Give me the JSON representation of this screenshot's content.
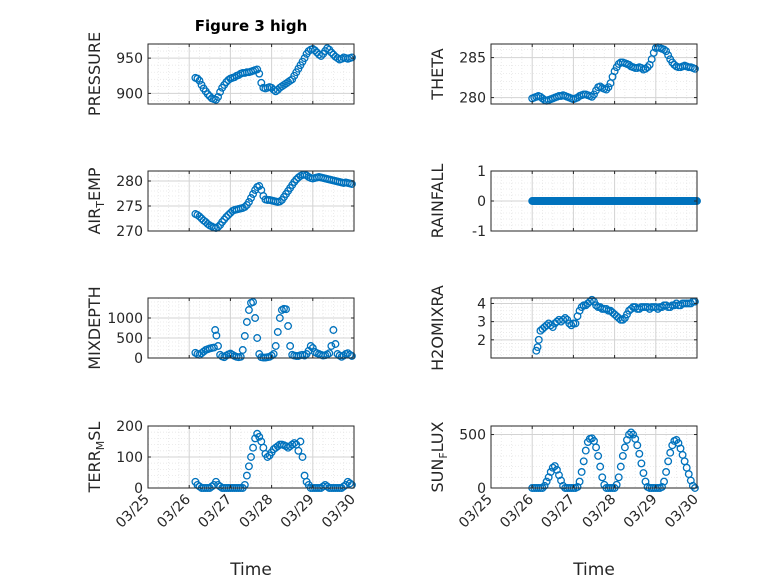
{
  "figure_title": "Figure 3 high",
  "colors": {
    "marker": "#0072BD",
    "axis": "#262626",
    "grid": "#d3d3d3",
    "minor_grid": "#e6e6e6"
  },
  "x_tick_labels": [
    "03/25",
    "03/26",
    "03/27",
    "03/28",
    "03/29",
    "03/30"
  ],
  "x_axis_label": "Time",
  "chart_data": [
    {
      "id": "pressure",
      "type": "scatter",
      "marker": "circle",
      "ylabel": {
        "main": "PRESSURE"
      },
      "ylim": [
        885,
        970
      ],
      "yticks": [
        900,
        950
      ],
      "ytick_labels": [
        "900",
        "950"
      ],
      "xlim": [
        0,
        5
      ],
      "grid": "major+minor",
      "x": [
        1.15,
        1.2,
        1.25,
        1.3,
        1.35,
        1.4,
        1.45,
        1.5,
        1.55,
        1.6,
        1.65,
        1.7,
        1.75,
        1.8,
        1.85,
        1.9,
        1.95,
        2.0,
        2.05,
        2.1,
        2.15,
        2.2,
        2.25,
        2.3,
        2.35,
        2.4,
        2.45,
        2.5,
        2.55,
        2.6,
        2.65,
        2.7,
        2.75,
        2.8,
        2.85,
        2.9,
        2.95,
        3.0,
        3.05,
        3.1,
        3.15,
        3.2,
        3.25,
        3.3,
        3.35,
        3.4,
        3.45,
        3.5,
        3.55,
        3.6,
        3.65,
        3.7,
        3.75,
        3.8,
        3.85,
        3.9,
        3.95,
        4.0,
        4.05,
        4.1,
        4.15,
        4.2,
        4.25,
        4.3,
        4.35,
        4.4,
        4.45,
        4.5,
        4.55,
        4.6,
        4.65,
        4.7,
        4.75,
        4.8,
        4.85,
        4.9,
        4.95
      ],
      "y": [
        922,
        921,
        918,
        912,
        907,
        903,
        899,
        896,
        893,
        892,
        891,
        895,
        902,
        908,
        912,
        916,
        919,
        921,
        922,
        923,
        925,
        926,
        928,
        929,
        929,
        930,
        930,
        931,
        932,
        933,
        934,
        928,
        915,
        908,
        907,
        908,
        909,
        908,
        905,
        903,
        905,
        908,
        910,
        912,
        914,
        916,
        918,
        920,
        925,
        930,
        935,
        940,
        945,
        950,
        956,
        960,
        962,
        963,
        961,
        958,
        955,
        953,
        956,
        960,
        964,
        962,
        958,
        955,
        952,
        950,
        948,
        949,
        951,
        950,
        949,
        950,
        951
      ]
    },
    {
      "id": "theta",
      "type": "scatter",
      "marker": "circle",
      "ylabel": {
        "main": "THETA"
      },
      "ylim": [
        279.2,
        286.7
      ],
      "yticks": [
        280,
        285
      ],
      "ytick_labels": [
        "280",
        "285"
      ],
      "xlim": [
        0,
        5
      ],
      "grid": "major+minor",
      "x": [
        1.0,
        1.05,
        1.1,
        1.15,
        1.2,
        1.25,
        1.3,
        1.35,
        1.4,
        1.45,
        1.5,
        1.55,
        1.6,
        1.65,
        1.7,
        1.75,
        1.8,
        1.85,
        1.9,
        1.95,
        2.0,
        2.05,
        2.1,
        2.15,
        2.2,
        2.25,
        2.3,
        2.35,
        2.4,
        2.45,
        2.5,
        2.55,
        2.6,
        2.65,
        2.7,
        2.75,
        2.8,
        2.85,
        2.9,
        2.95,
        3.0,
        3.05,
        3.1,
        3.15,
        3.2,
        3.25,
        3.3,
        3.35,
        3.4,
        3.45,
        3.5,
        3.55,
        3.6,
        3.65,
        3.7,
        3.75,
        3.8,
        3.85,
        3.9,
        3.95,
        4.0,
        4.05,
        4.1,
        4.15,
        4.2,
        4.25,
        4.3,
        4.35,
        4.4,
        4.45,
        4.5,
        4.55,
        4.6,
        4.65,
        4.7,
        4.75,
        4.8,
        4.85,
        4.9,
        4.95
      ],
      "y": [
        279.9,
        280.0,
        280.1,
        280.2,
        280.1,
        279.9,
        279.7,
        279.6,
        279.7,
        279.8,
        279.9,
        280.0,
        280.1,
        280.2,
        280.2,
        280.3,
        280.2,
        280.1,
        280.0,
        279.9,
        279.8,
        279.9,
        280.0,
        280.2,
        280.3,
        280.4,
        280.4,
        280.3,
        280.2,
        280.1,
        280.4,
        280.9,
        281.3,
        281.4,
        281.2,
        281.1,
        281.0,
        281.3,
        281.8,
        282.6,
        283.3,
        283.8,
        284.2,
        284.4,
        284.4,
        284.3,
        284.2,
        284.1,
        283.9,
        283.8,
        283.7,
        283.7,
        283.8,
        283.7,
        283.5,
        283.6,
        283.8,
        284.1,
        284.8,
        285.6,
        286.2,
        286.3,
        286.2,
        286.1,
        286.0,
        285.8,
        285.3,
        284.8,
        284.4,
        284.1,
        283.9,
        283.8,
        283.8,
        283.9,
        284.0,
        283.9,
        283.8,
        283.8,
        283.7,
        283.6
      ]
    },
    {
      "id": "air_temp",
      "type": "scatter",
      "marker": "circle",
      "ylabel": {
        "main": "AIR",
        "sub": "T",
        "rest": "EMP"
      },
      "ylim": [
        270,
        282
      ],
      "yticks": [
        270,
        275,
        280
      ],
      "ytick_labels": [
        "270",
        "275",
        "280"
      ],
      "xlim": [
        0,
        5
      ],
      "grid": "major+minor",
      "x": [
        1.15,
        1.2,
        1.25,
        1.3,
        1.35,
        1.4,
        1.45,
        1.5,
        1.55,
        1.6,
        1.65,
        1.7,
        1.75,
        1.8,
        1.85,
        1.9,
        1.95,
        2.0,
        2.05,
        2.1,
        2.15,
        2.2,
        2.25,
        2.3,
        2.35,
        2.4,
        2.45,
        2.5,
        2.55,
        2.6,
        2.65,
        2.7,
        2.75,
        2.8,
        2.85,
        2.9,
        2.95,
        3.0,
        3.05,
        3.1,
        3.15,
        3.2,
        3.25,
        3.3,
        3.35,
        3.4,
        3.45,
        3.5,
        3.55,
        3.6,
        3.65,
        3.7,
        3.75,
        3.8,
        3.85,
        3.9,
        3.95,
        4.0,
        4.05,
        4.1,
        4.15,
        4.2,
        4.25,
        4.3,
        4.35,
        4.4,
        4.45,
        4.5,
        4.55,
        4.6,
        4.65,
        4.7,
        4.75,
        4.8,
        4.85,
        4.9,
        4.95
      ],
      "y": [
        273.4,
        273.2,
        272.9,
        272.5,
        272.1,
        271.8,
        271.4,
        271.1,
        270.9,
        270.7,
        270.6,
        270.8,
        271.2,
        271.8,
        272.3,
        272.8,
        273.2,
        273.6,
        274.0,
        274.2,
        274.3,
        274.4,
        274.5,
        274.6,
        274.8,
        275.2,
        275.8,
        276.6,
        277.4,
        278.2,
        278.8,
        279.0,
        278.2,
        277.0,
        276.3,
        276.2,
        276.2,
        276.1,
        276.0,
        275.9,
        275.8,
        275.9,
        276.2,
        276.8,
        277.4,
        278.0,
        278.6,
        279.2,
        279.8,
        280.3,
        280.7,
        281.0,
        281.2,
        281.3,
        281.1,
        280.8,
        280.6,
        280.5,
        280.6,
        280.7,
        280.8,
        280.7,
        280.6,
        280.5,
        280.4,
        280.3,
        280.2,
        280.1,
        280.0,
        279.9,
        279.8,
        279.7,
        279.6,
        279.7,
        279.6,
        279.5,
        279.4
      ]
    },
    {
      "id": "rainfall",
      "type": "scatter",
      "marker": "circle",
      "ylabel": {
        "main": "RAINFALL"
      },
      "ylim": [
        -1,
        1
      ],
      "yticks": [
        -1,
        0,
        1
      ],
      "ytick_labels": [
        "-1",
        "0",
        "1"
      ],
      "xlim": [
        0,
        5
      ],
      "grid": "major+minor",
      "x_start": 1.0,
      "x_end": 5.0,
      "x_step": 0.025,
      "constant_y": 0
    },
    {
      "id": "mixdepth",
      "type": "scatter",
      "marker": "circle",
      "ylabel": {
        "main": "MIXDEPTH"
      },
      "ylim": [
        0,
        1500
      ],
      "yticks": [
        0,
        500,
        1000
      ],
      "ytick_labels": [
        "0",
        "500",
        "1000"
      ],
      "xlim": [
        0,
        5
      ],
      "grid": "major+minor",
      "x": [
        1.15,
        1.2,
        1.25,
        1.3,
        1.35,
        1.4,
        1.45,
        1.5,
        1.55,
        1.6,
        1.63,
        1.66,
        1.7,
        1.75,
        1.8,
        1.85,
        1.9,
        1.95,
        2.0,
        2.05,
        2.1,
        2.15,
        2.2,
        2.25,
        2.3,
        2.35,
        2.4,
        2.45,
        2.5,
        2.55,
        2.6,
        2.65,
        2.7,
        2.75,
        2.8,
        2.85,
        2.9,
        2.95,
        3.0,
        3.05,
        3.1,
        3.15,
        3.2,
        3.25,
        3.3,
        3.35,
        3.4,
        3.45,
        3.5,
        3.55,
        3.6,
        3.65,
        3.7,
        3.75,
        3.8,
        3.85,
        3.9,
        3.95,
        4.0,
        4.05,
        4.1,
        4.15,
        4.2,
        4.25,
        4.3,
        4.35,
        4.4,
        4.45,
        4.5,
        4.55,
        4.6,
        4.65,
        4.7,
        4.75,
        4.8,
        4.85,
        4.9,
        4.95
      ],
      "y": [
        130,
        100,
        80,
        120,
        160,
        200,
        220,
        240,
        250,
        260,
        700,
        560,
        300,
        80,
        40,
        20,
        60,
        90,
        110,
        80,
        50,
        30,
        20,
        30,
        200,
        550,
        900,
        1200,
        1380,
        1400,
        1000,
        500,
        100,
        20,
        10,
        10,
        20,
        30,
        60,
        100,
        300,
        650,
        1000,
        1200,
        1230,
        1220,
        800,
        300,
        80,
        60,
        50,
        50,
        70,
        80,
        60,
        100,
        180,
        300,
        250,
        150,
        120,
        100,
        80,
        60,
        70,
        90,
        120,
        300,
        700,
        350,
        100,
        60,
        30,
        60,
        100,
        120,
        80,
        50
      ]
    },
    {
      "id": "h2omixra",
      "type": "scatter",
      "marker": "circle",
      "ylabel": {
        "main": "H2OMIXRA"
      },
      "ylim": [
        1.0,
        4.3
      ],
      "yticks": [
        2,
        3,
        4
      ],
      "ytick_labels": [
        "2",
        "3",
        "4"
      ],
      "xlim": [
        0,
        5
      ],
      "grid": "major+minor",
      "x": [
        1.1,
        1.13,
        1.16,
        1.2,
        1.25,
        1.3,
        1.35,
        1.4,
        1.45,
        1.5,
        1.55,
        1.6,
        1.65,
        1.7,
        1.75,
        1.8,
        1.85,
        1.9,
        1.95,
        2.0,
        2.05,
        2.1,
        2.15,
        2.2,
        2.25,
        2.3,
        2.35,
        2.4,
        2.45,
        2.5,
        2.55,
        2.6,
        2.65,
        2.7,
        2.75,
        2.8,
        2.85,
        2.9,
        2.95,
        3.0,
        3.05,
        3.1,
        3.15,
        3.2,
        3.25,
        3.3,
        3.35,
        3.4,
        3.45,
        3.5,
        3.55,
        3.6,
        3.65,
        3.7,
        3.75,
        3.8,
        3.85,
        3.9,
        3.95,
        4.0,
        4.05,
        4.1,
        4.15,
        4.2,
        4.25,
        4.3,
        4.35,
        4.4,
        4.45,
        4.5,
        4.55,
        4.6,
        4.65,
        4.7,
        4.75,
        4.8,
        4.85,
        4.9,
        4.95
      ],
      "y": [
        1.4,
        1.6,
        2.0,
        2.5,
        2.6,
        2.7,
        2.8,
        2.9,
        2.8,
        2.7,
        2.9,
        3.0,
        3.1,
        3.0,
        3.1,
        3.2,
        3.1,
        2.9,
        2.8,
        2.9,
        2.9,
        3.3,
        3.6,
        3.8,
        3.9,
        3.9,
        4.0,
        4.1,
        4.2,
        4.1,
        3.9,
        3.8,
        3.8,
        3.7,
        3.7,
        3.7,
        3.6,
        3.6,
        3.5,
        3.4,
        3.3,
        3.2,
        3.1,
        3.1,
        3.2,
        3.4,
        3.6,
        3.7,
        3.8,
        3.8,
        3.7,
        3.7,
        3.8,
        3.8,
        3.8,
        3.8,
        3.7,
        3.8,
        3.8,
        3.8,
        3.7,
        3.8,
        3.8,
        3.9,
        3.9,
        3.8,
        3.8,
        3.9,
        3.9,
        4.0,
        3.9,
        3.9,
        4.0,
        4.0,
        4.0,
        4.0,
        4.0,
        4.1,
        4.1
      ]
    },
    {
      "id": "terr_msl",
      "type": "scatter",
      "marker": "circle",
      "ylabel": {
        "main": "TERR",
        "sub": "M",
        "rest": "SL"
      },
      "ylim": [
        0,
        200
      ],
      "yticks": [
        0,
        100,
        200
      ],
      "ytick_labels": [
        "0",
        "100",
        "200"
      ],
      "xlim": [
        0,
        5
      ],
      "grid": "major+minor",
      "x": [
        1.15,
        1.2,
        1.25,
        1.3,
        1.35,
        1.4,
        1.45,
        1.5,
        1.55,
        1.6,
        1.65,
        1.7,
        1.75,
        1.8,
        1.85,
        1.9,
        1.95,
        2.0,
        2.05,
        2.1,
        2.15,
        2.2,
        2.25,
        2.3,
        2.35,
        2.4,
        2.45,
        2.5,
        2.55,
        2.6,
        2.65,
        2.7,
        2.75,
        2.8,
        2.85,
        2.9,
        2.95,
        3.0,
        3.05,
        3.1,
        3.15,
        3.2,
        3.25,
        3.3,
        3.35,
        3.4,
        3.45,
        3.5,
        3.55,
        3.6,
        3.65,
        3.7,
        3.75,
        3.8,
        3.85,
        3.9,
        3.95,
        4.0,
        4.05,
        4.1,
        4.15,
        4.2,
        4.25,
        4.3,
        4.35,
        4.4,
        4.45,
        4.5,
        4.55,
        4.6,
        4.65,
        4.7,
        4.75,
        4.8,
        4.85,
        4.9,
        4.95
      ],
      "y": [
        20,
        10,
        5,
        0,
        0,
        0,
        0,
        0,
        5,
        10,
        20,
        10,
        5,
        0,
        0,
        0,
        0,
        0,
        0,
        0,
        0,
        0,
        0,
        0,
        10,
        40,
        70,
        100,
        130,
        160,
        175,
        165,
        150,
        130,
        110,
        100,
        105,
        115,
        125,
        130,
        135,
        140,
        140,
        138,
        135,
        130,
        135,
        140,
        145,
        140,
        120,
        150,
        100,
        40,
        20,
        10,
        0,
        0,
        0,
        0,
        0,
        0,
        5,
        10,
        5,
        0,
        0,
        0,
        0,
        0,
        0,
        0,
        5,
        10,
        20,
        15,
        10
      ]
    },
    {
      "id": "sun_flux",
      "type": "scatter",
      "marker": "circle",
      "ylabel": {
        "main": "SUN",
        "sub": "F",
        "rest": "LUX"
      },
      "ylim": [
        0,
        580
      ],
      "yticks": [
        0,
        500
      ],
      "ytick_labels": [
        "0",
        "500"
      ],
      "xlim": [
        0,
        5
      ],
      "grid": "major+minor",
      "x": [
        1.0,
        1.05,
        1.1,
        1.15,
        1.2,
        1.25,
        1.3,
        1.35,
        1.4,
        1.45,
        1.5,
        1.55,
        1.6,
        1.65,
        1.7,
        1.75,
        1.8,
        1.85,
        1.9,
        1.95,
        2.0,
        2.05,
        2.1,
        2.15,
        2.2,
        2.25,
        2.3,
        2.35,
        2.4,
        2.45,
        2.5,
        2.55,
        2.6,
        2.65,
        2.7,
        2.75,
        2.8,
        2.85,
        2.9,
        2.95,
        3.0,
        3.05,
        3.1,
        3.15,
        3.2,
        3.25,
        3.3,
        3.35,
        3.4,
        3.45,
        3.5,
        3.55,
        3.6,
        3.65,
        3.7,
        3.75,
        3.8,
        3.85,
        3.9,
        3.95,
        4.0,
        4.05,
        4.1,
        4.15,
        4.2,
        4.25,
        4.3,
        4.35,
        4.4,
        4.45,
        4.5,
        4.55,
        4.6,
        4.65,
        4.7,
        4.75,
        4.8,
        4.85,
        4.9,
        4.95
      ],
      "y": [
        0,
        0,
        0,
        0,
        0,
        0,
        20,
        60,
        100,
        150,
        190,
        205,
        170,
        120,
        70,
        20,
        0,
        0,
        0,
        0,
        0,
        0,
        10,
        60,
        150,
        250,
        350,
        430,
        460,
        465,
        440,
        380,
        300,
        200,
        100,
        30,
        0,
        0,
        0,
        0,
        0,
        30,
        100,
        200,
        300,
        380,
        450,
        500,
        520,
        500,
        460,
        400,
        320,
        230,
        140,
        60,
        10,
        0,
        0,
        0,
        0,
        0,
        0,
        10,
        60,
        150,
        250,
        330,
        400,
        440,
        450,
        420,
        370,
        310,
        250,
        190,
        130,
        70,
        20,
        0
      ]
    }
  ]
}
